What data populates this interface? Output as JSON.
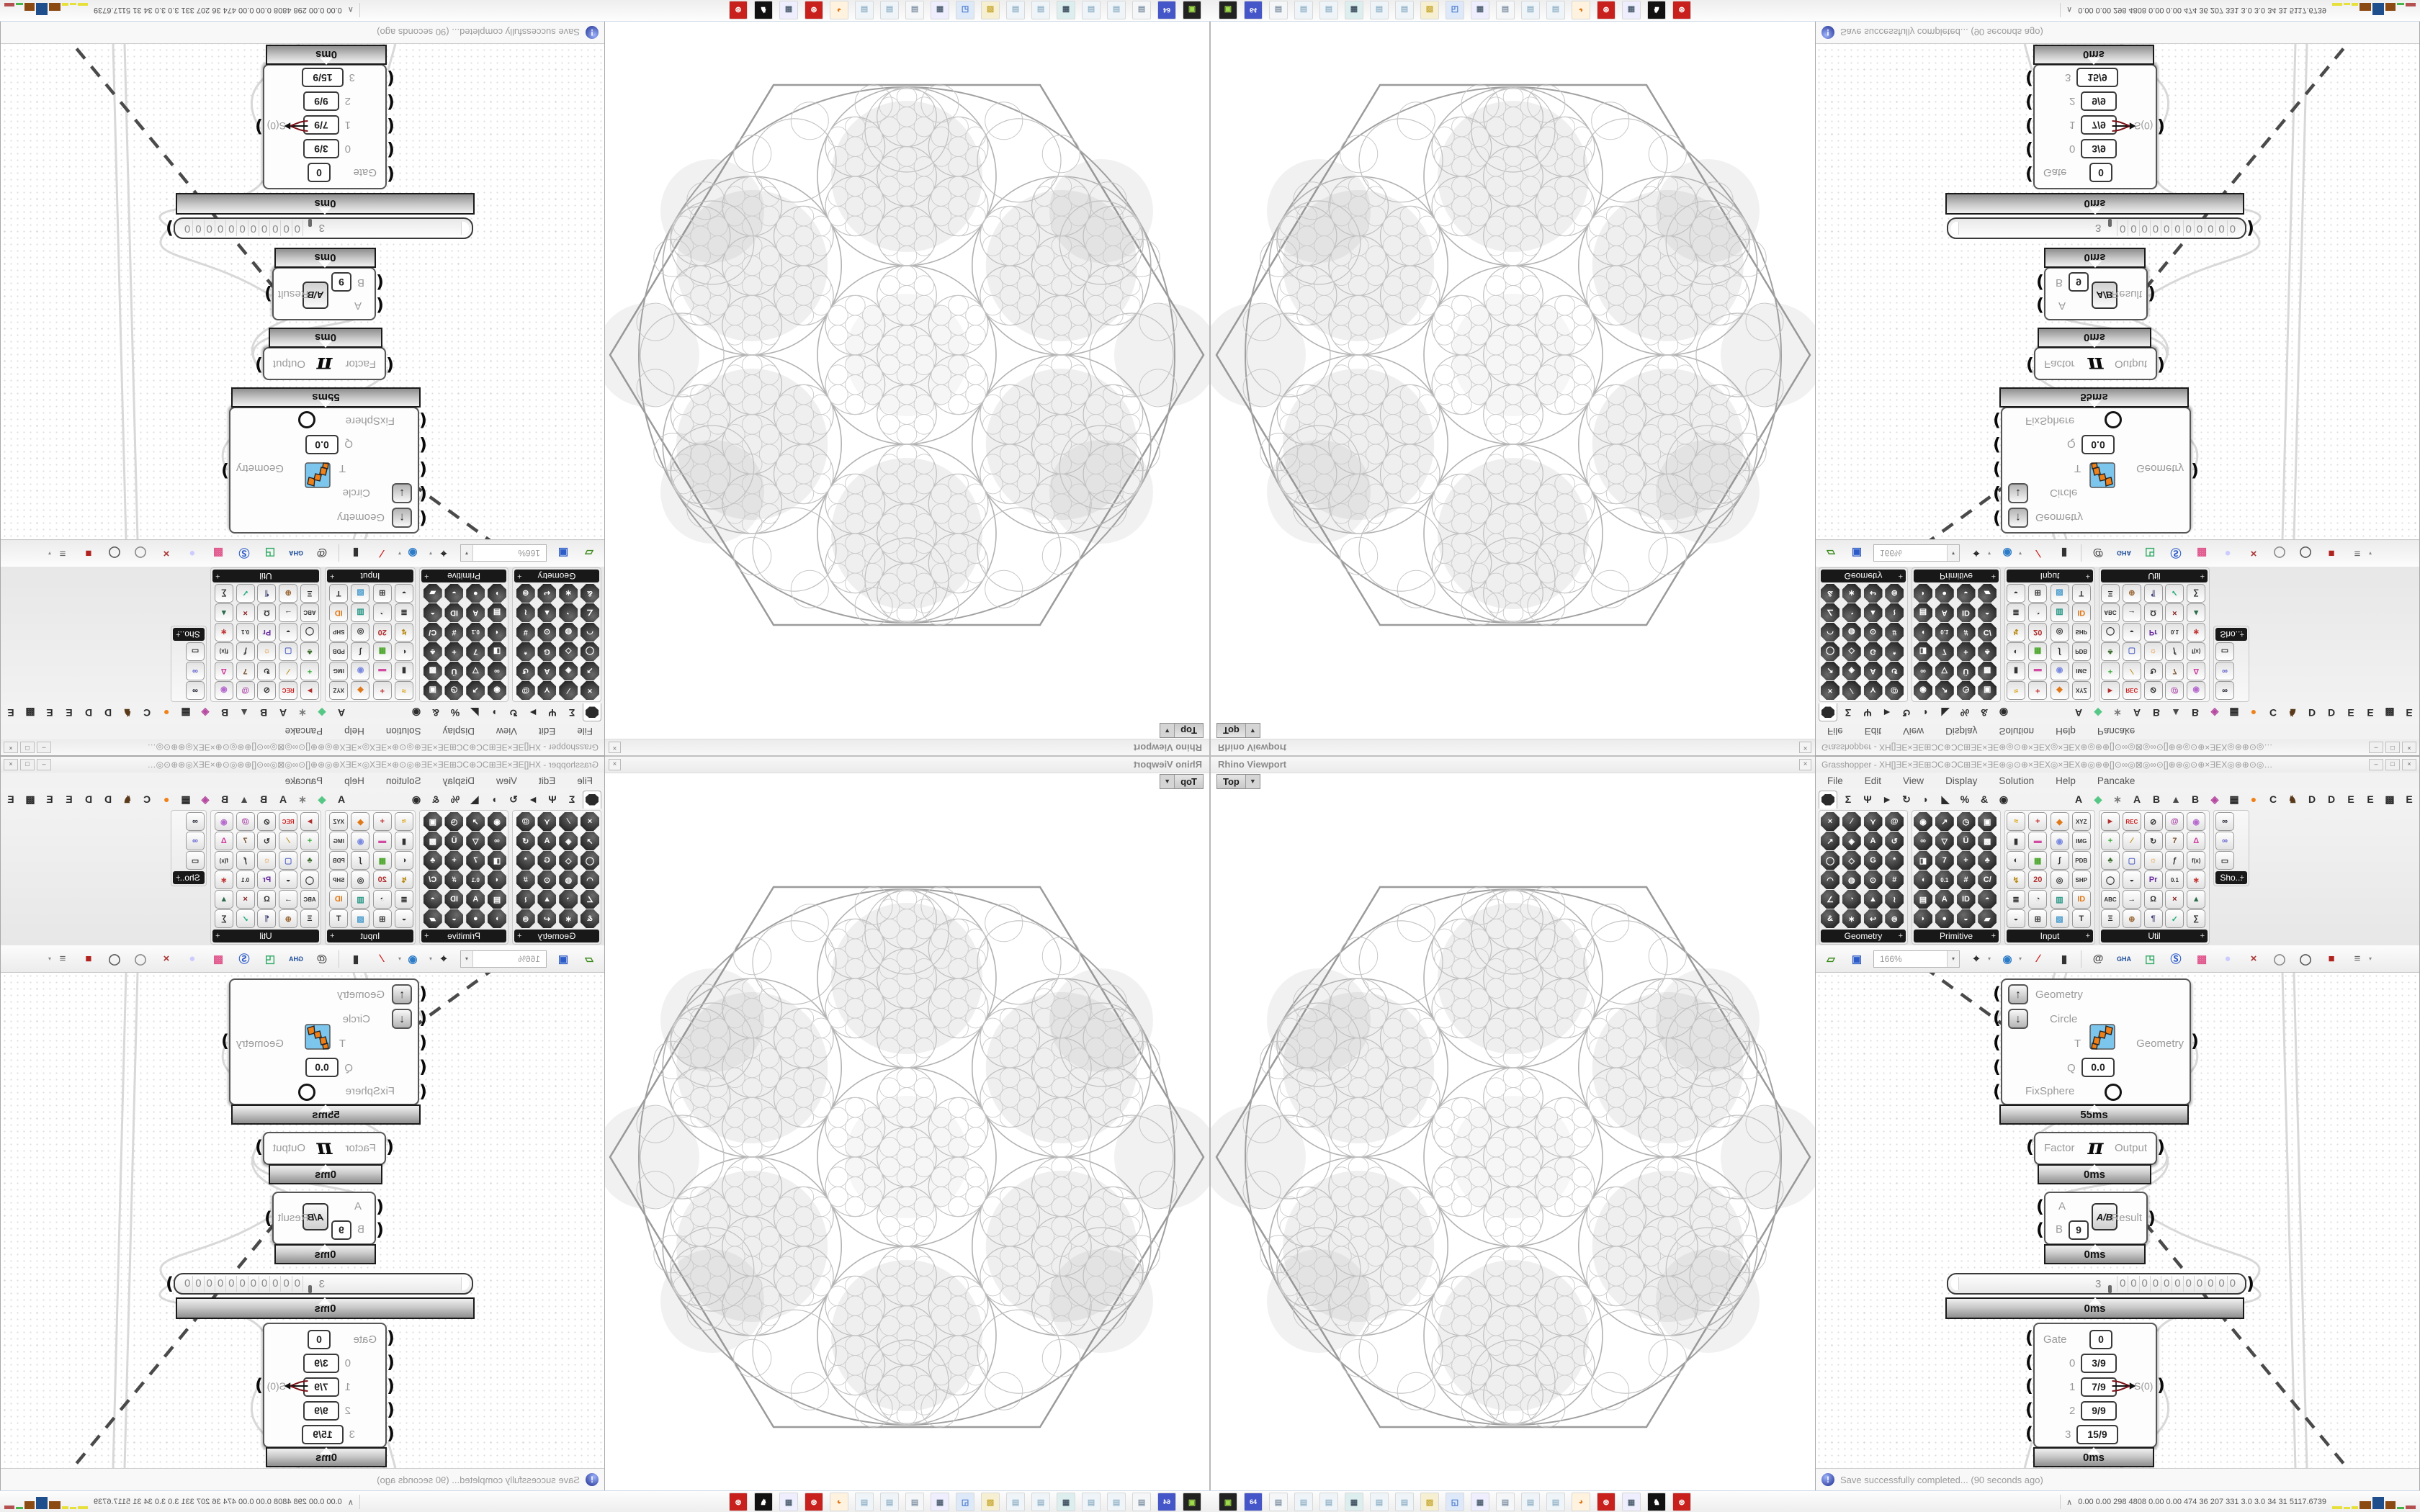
{
  "viewport": {
    "title": "Rhino Viewport",
    "close": "×",
    "tab": "Top",
    "tab_arrow": "▼"
  },
  "grasshopper": {
    "title": "Grasshopper - XH[]ƎE×ƎE⊞ƆC⊕ƆC⊞ƎE×ƎE⊛◎⊙⊕×ƎEX◎×ƎEX⊕◎⊛⊕[]⊙∞◎⊠◎∞⊙[]⊕⊛◎⊙⊕×ƎEX◎⊛⊕⊙◎…",
    "buttons": {
      "minimize": "–",
      "maximize": "□",
      "close": "×"
    },
    "menu": [
      "File",
      "Edit",
      "View",
      "Display",
      "Solution",
      "Help",
      "Pancake"
    ],
    "ribbon": {
      "tabs": [
        {
          "n": "params",
          "shape": "octagon",
          "selected": true
        },
        {
          "n": "maths",
          "g": "Σ"
        },
        {
          "n": "sets",
          "g": "Ψ"
        },
        {
          "n": "vector",
          "g": "►"
        },
        {
          "n": "curve",
          "g": "↻"
        },
        {
          "n": "surface",
          "g": "◗"
        },
        {
          "n": "mesh",
          "g": "◣"
        },
        {
          "n": "intersect",
          "g": "%"
        },
        {
          "n": "transform",
          "g": "&"
        },
        {
          "n": "display",
          "g": "◉"
        },
        {
          "spacer": true
        },
        {
          "n": "plugin-a1",
          "g": "A"
        },
        {
          "n": "plugin-diamond",
          "g": "◆",
          "c": "#57c785"
        },
        {
          "n": "plugin-flower",
          "g": "∗",
          "c": "#7a7a7a"
        },
        {
          "n": "plugin-a2",
          "g": "A"
        },
        {
          "n": "plugin-b1",
          "g": "B"
        },
        {
          "n": "plugin-mountain",
          "g": "▲",
          "c": "#4a4a4a"
        },
        {
          "n": "plugin-b2",
          "g": "B"
        },
        {
          "n": "plugin-pinwheel",
          "g": "◈",
          "c": "#b5489f"
        },
        {
          "n": "plugin-grid",
          "g": "▦"
        },
        {
          "n": "plugin-dot",
          "g": "●",
          "c": "#f08018"
        },
        {
          "n": "plugin-c",
          "g": "C"
        },
        {
          "n": "plugin-bird",
          "g": "♞",
          "c": "#5a3a1a"
        },
        {
          "n": "plugin-d1",
          "g": "D"
        },
        {
          "n": "plugin-d2",
          "g": "D"
        },
        {
          "n": "plugin-e1",
          "g": "E"
        },
        {
          "n": "plugin-e2",
          "g": "E"
        },
        {
          "n": "plugin-checker",
          "g": "▩"
        },
        {
          "n": "plugin-e3",
          "g": "E"
        }
      ],
      "groups": [
        {
          "label": "Geometry",
          "style": "dark",
          "cols": 4,
          "width": 118,
          "icons": [
            "×",
            "∕",
            "⋎",
            "@",
            "↗",
            "◈",
            "A",
            "↺",
            "◯",
            "◇",
            "G",
            "*",
            "◠",
            "◍",
            "⊙",
            "#",
            "∠",
            "◔",
            "▲",
            "≀",
            "&",
            "∗",
            "↩",
            "⊚"
          ]
        },
        {
          "label": "Primitive",
          "style": "dark",
          "cols": 4,
          "width": 118,
          "icons": [
            "◉",
            "↗",
            "◷",
            "▣",
            "∞",
            "▽",
            "Ü",
            "▩",
            "◨",
            "7",
            "+",
            "♣",
            "◖",
            "0.1",
            "#",
            "C/",
            "▤",
            "A",
            "ID",
            "◓",
            "◗",
            "●",
            "◒",
            "▰"
          ]
        },
        {
          "label": "Input",
          "style": "light",
          "cols": 4,
          "width": 120,
          "icons": [
            {
              "g": "≈",
              "c": "#d9a514"
            },
            {
              "g": "+",
              "c": "#c23333"
            },
            {
              "g": "◆",
              "c": "#e07818"
            },
            {
              "g": "XYZ"
            },
            {
              "g": "▮"
            },
            {
              "g": "▬",
              "c": "#d04ca0"
            },
            {
              "g": "◉",
              "c": "#7a8ae0"
            },
            {
              "g": "IMG"
            },
            {
              "g": "◐"
            },
            {
              "g": "▦",
              "c": "#4aa52a"
            },
            {
              "g": "∫"
            },
            {
              "g": "PDB"
            },
            {
              "g": "↯",
              "c": "#b8860b"
            },
            {
              "g": "20",
              "c": "#b03030"
            },
            {
              "g": "◎"
            },
            {
              "g": "SHP"
            },
            {
              "g": "≣"
            },
            {
              "g": "◔"
            },
            {
              "g": "▥",
              "c": "#2a9988"
            },
            {
              "g": "ID",
              "c": "#e07818"
            },
            {
              "g": "◒"
            },
            {
              "g": "⊞"
            },
            {
              "g": "▧",
              "c": "#4499cc"
            },
            {
              "g": "T"
            }
          ]
        },
        {
          "label": "Util",
          "style": "light",
          "cols": 5,
          "width": 148,
          "icons": [
            {
              "g": "►",
              "c": "#b03030"
            },
            {
              "g": "REC",
              "c": "#cc2222"
            },
            {
              "g": "⊘"
            },
            {
              "g": "@",
              "c": "#aa44aa"
            },
            {
              "g": "◉",
              "c": "#b66ad0"
            },
            {
              "g": "+",
              "c": "#33aa33"
            },
            {
              "g": "∕",
              "c": "#b8860b"
            },
            {
              "g": "↻"
            },
            {
              "g": "7",
              "c": "#7a5230"
            },
            {
              "g": "Δ",
              "c": "#d040a0"
            },
            {
              "g": "♣",
              "c": "#3a6b2a"
            },
            {
              "g": "▢",
              "c": "#5a6ac8"
            },
            {
              "g": "☼",
              "c": "#e08818"
            },
            {
              "g": "ƒ"
            },
            {
              "g": "f(x)"
            },
            {
              "g": "◯"
            },
            {
              "g": "◒"
            },
            {
              "g": "Pr",
              "c": "#6a2ea0"
            },
            {
              "g": "0.1"
            },
            {
              "g": "∗",
              "c": "#c23333"
            },
            {
              "g": "ABC"
            },
            {
              "g": "→"
            },
            {
              "g": "Ω"
            },
            {
              "g": "×",
              "c": "#882222"
            },
            {
              "g": "▲",
              "c": "#2a6b4a"
            },
            {
              "g": "Ξ"
            },
            {
              "g": "⊕",
              "c": "#996633"
            },
            {
              "g": "¶",
              "c": "#444477"
            },
            {
              "g": "✓",
              "c": "#22aa77"
            },
            {
              "g": "∑"
            }
          ]
        },
        {
          "label": "Sho...",
          "style": "light",
          "cols": 1,
          "width": 44,
          "icons": [
            {
              "g": "∞",
              "c": "#222233"
            },
            {
              "g": "∞",
              "c": "#5555cc"
            },
            {
              "g": "▭"
            }
          ]
        }
      ]
    },
    "toolbar": {
      "zoom": "166%",
      "arrow": "▾",
      "icons_pre": [
        {
          "n": "open-file",
          "g": "▱",
          "c": "#3a8a1a"
        },
        {
          "n": "save-file",
          "g": "▣",
          "c": "#2d5cc8"
        }
      ],
      "icons_post": [
        {
          "n": "zoom-extents",
          "g": "⌖",
          "c": "#111111",
          "dd": true
        },
        {
          "n": "preview",
          "g": "◉",
          "c": "#2d7cc8",
          "dd": true
        },
        {
          "n": "sketch",
          "g": "∕",
          "c": "#cc2222"
        },
        {
          "n": "camera",
          "g": "▮",
          "c": "#333333"
        },
        {
          "n": "sep"
        },
        {
          "n": "remote",
          "g": "@",
          "c": "#444444"
        },
        {
          "n": "gha",
          "g": "GHA",
          "c": "#1a4a9a"
        },
        {
          "n": "export-view",
          "g": "◳",
          "c": "#33aa66"
        },
        {
          "n": "search",
          "g": "Ⓢ",
          "c": "#2d5cc8"
        },
        {
          "n": "package",
          "g": "▩",
          "c": "#e0568c"
        },
        {
          "n": "bulb",
          "g": "●",
          "c": "#ccccff"
        },
        {
          "n": "wires",
          "g": "×",
          "c": "#aa3333"
        },
        {
          "n": "cylinder-1",
          "g": "◯",
          "c": "#888888"
        },
        {
          "n": "cylinder-2",
          "g": "◯",
          "c": "#555555"
        },
        {
          "n": "box-red",
          "g": "■",
          "c": "#b1231f"
        },
        {
          "n": "canvas-menu",
          "g": "≡",
          "c": "#666666",
          "dd": true
        }
      ]
    },
    "canvas": {
      "jack_in": "(",
      "jack_out": ")",
      "param": {
        "row1": {
          "button": "↑",
          "label": "Geometry"
        },
        "row2": {
          "button": "↓",
          "label": "Circle"
        },
        "row3": {
          "label": "T",
          "output": "Geometry"
        },
        "row4": {
          "label": "Q",
          "value": "0.0"
        },
        "row5": {
          "label": "FixSphere"
        },
        "profiler": "55ms"
      },
      "factor": {
        "input": "Factor",
        "symbol": "π",
        "output": "Output",
        "profiler": "0ms"
      },
      "divide": {
        "input_a": "A",
        "input_b": "B",
        "value_b": "9",
        "symbol": "A/B",
        "output": "Result",
        "profiler": "0ms"
      },
      "slider": {
        "value": "3",
        "digits": [
          "0",
          "0",
          "0",
          "0",
          "0",
          "0",
          "0",
          "0",
          "0",
          "0",
          "0"
        ],
        "profiler": "0ms"
      },
      "gate": {
        "label": "Gate",
        "value": "0",
        "rows": [
          {
            "index": "0",
            "value": "3/9"
          },
          {
            "index": "1",
            "value": "7/9"
          },
          {
            "index": "2",
            "value": "9/9"
          },
          {
            "index": "3",
            "value": "15/9"
          }
        ],
        "output": "S(0)",
        "profiler": "0ms"
      }
    },
    "status": {
      "icon": "!",
      "message": "Save successfully completed... (90 seconds ago)"
    }
  },
  "taskbar": {
    "icons": [
      {
        "n": "app-green",
        "g": "▣",
        "c": "#9fdc4a",
        "bg": "#222222"
      },
      {
        "n": "floppy-64",
        "g": "64",
        "c": "#ffffff",
        "bg": "#4456c8"
      },
      {
        "n": "print-scroll",
        "g": "▤",
        "c": "#8899aa",
        "bg": "#f4f6f8"
      },
      {
        "n": "notepad-1",
        "g": "▤",
        "c": "#9cb8cc",
        "bg": "#eef4f8"
      },
      {
        "n": "notepad-2",
        "g": "▤",
        "c": "#9cb8cc",
        "bg": "#eef4f8"
      },
      {
        "n": "monitor",
        "g": "▦",
        "c": "#445566",
        "bg": "#ddeeee"
      },
      {
        "n": "notepad-3",
        "g": "▤",
        "c": "#9cb8cc",
        "bg": "#eef4f8"
      },
      {
        "n": "notepad-4",
        "g": "▤",
        "c": "#9cb8cc",
        "bg": "#eef4f8"
      },
      {
        "n": "folder",
        "g": "▨",
        "c": "#c8a830",
        "bg": "#f6efd2"
      },
      {
        "n": "display-settings",
        "g": "◱",
        "c": "#4477cc",
        "bg": "#dde8f8"
      },
      {
        "n": "calculator-1",
        "g": "▦",
        "c": "#556677",
        "bg": "#eeeeff"
      },
      {
        "n": "print-scroll-2",
        "g": "▤",
        "c": "#8899aa",
        "bg": "#f4f6f8"
      },
      {
        "n": "notepad-5",
        "g": "▤",
        "c": "#9cb8cc",
        "bg": "#eef4f8"
      },
      {
        "n": "notepad-6",
        "g": "▤",
        "c": "#9cb8cc",
        "bg": "#eef4f8"
      },
      {
        "n": "firefox",
        "g": "◕",
        "c": "#e07818",
        "bg": "#fff3e0"
      },
      {
        "n": "red-gear",
        "g": "⊛",
        "c": "#ffffff",
        "bg": "#c8201c"
      },
      {
        "n": "calculator-2",
        "g": "▦",
        "c": "#556677",
        "bg": "#eeeeff"
      },
      {
        "n": "rhino",
        "g": "♞",
        "c": "#ffffff",
        "bg": "#111111"
      },
      {
        "n": "red-badge",
        "g": "⊛",
        "c": "#ffffff",
        "bg": "#c8201c"
      }
    ],
    "stats_chevron": "∧",
    "stats": "0.00 0.00  298  4808 0.00 0.00  474   36   207   331   3.0   3.0   34   31  5117.6739",
    "sparkline": [
      [
        "#e6e03a",
        4,
        14
      ],
      [
        "#e6e03a",
        3,
        9
      ],
      [
        "#e6e03a",
        4,
        9
      ],
      [
        "#8a4a12",
        11,
        16
      ],
      [
        "#1f4e8c",
        17,
        16
      ],
      [
        "#8a4a12",
        11,
        14
      ],
      [
        "#46b446",
        3,
        10
      ],
      [
        "#b45050",
        5,
        14
      ]
    ]
  },
  "colors": {
    "wire_gray": "#d8d8d8",
    "dash_gray": "#4a4a4a",
    "profiler_border": "#1a1a1a",
    "selection_arrow_red": "#7a1016"
  }
}
